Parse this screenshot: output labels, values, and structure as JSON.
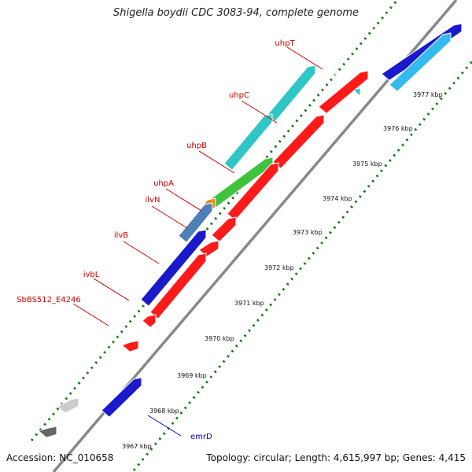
{
  "title": "Shigella boydii CDC 3083-94, complete genome",
  "footer": {
    "accession": "Accession: NC_010658",
    "topology": "Topology: circular; Length: 4,615,997 bp; Genes: 4,415"
  },
  "colors": {
    "backbone": "#888888",
    "forward_dots": "#1a7a1a",
    "reverse_dots": "#1a7a1a",
    "gene_label_red": "#cc0000",
    "gene_label_blue": "#0000cc"
  },
  "tick_labels": [
    {
      "kbp": 3967,
      "label": "3967 kbp"
    },
    {
      "kbp": 3968,
      "label": "3968 kbp"
    },
    {
      "kbp": 3969,
      "label": "3969 kbp"
    },
    {
      "kbp": 3970,
      "label": "3970 kbp"
    },
    {
      "kbp": 3971,
      "label": "3971 kbp"
    },
    {
      "kbp": 3972,
      "label": "3972 kbp"
    },
    {
      "kbp": 3973,
      "label": "3973 kbp"
    },
    {
      "kbp": 3974,
      "label": "3974 kbp"
    },
    {
      "kbp": 3975,
      "label": "3975 kbp"
    },
    {
      "kbp": 3976,
      "label": "3976 kbp"
    },
    {
      "kbp": 3977,
      "label": "3977 kbp"
    }
  ],
  "gene_labels": [
    {
      "name": "uhpT",
      "color": "#cc0000"
    },
    {
      "name": "uhpC",
      "color": "#cc0000"
    },
    {
      "name": "uhpB",
      "color": "#cc0000"
    },
    {
      "name": "uhpA",
      "color": "#cc0000"
    },
    {
      "name": "ilvN",
      "color": "#cc0000"
    },
    {
      "name": "ilvB",
      "color": "#cc0000"
    },
    {
      "name": "ivbL",
      "color": "#cc0000"
    },
    {
      "name": "SbBS512_E4246",
      "color": "#cc0000"
    },
    {
      "name": "emrD",
      "color": "#0000cc"
    }
  ],
  "features": [
    {
      "track": "outer",
      "strand": "forward",
      "color": "#2fc6c6",
      "name": "uhpT"
    },
    {
      "track": "outer",
      "strand": "forward",
      "color": "#2fc6c6",
      "name": "uhpC"
    },
    {
      "track": "outer",
      "strand": "forward",
      "color": "#2fc6c6",
      "name": "uhpB"
    },
    {
      "track": "outer",
      "strand": "forward",
      "color": "#3fc33f",
      "name": "uhpB"
    },
    {
      "track": "outer",
      "strand": "forward",
      "color": "#e8891a",
      "name": "uhpA"
    },
    {
      "track": "outer",
      "strand": "forward",
      "color": "#4d7fb8",
      "name": "ilvN"
    },
    {
      "track": "outer",
      "strand": "forward",
      "color": "#1a1acc",
      "name": "ilvB"
    },
    {
      "track": "outer",
      "strand": "forward",
      "color": "#cccccc",
      "name": "other"
    },
    {
      "track": "outer",
      "strand": "forward",
      "color": "#666666",
      "name": "other"
    },
    {
      "track": "inner",
      "strand": "forward",
      "color": "#ff1a1a",
      "name": "uhpT"
    },
    {
      "track": "inner",
      "strand": "forward",
      "color": "#ff1a1a",
      "name": "uhpC"
    },
    {
      "track": "inner",
      "strand": "forward",
      "color": "#ff1a1a",
      "name": "uhpB"
    },
    {
      "track": "inner",
      "strand": "forward",
      "color": "#ff1a1a",
      "name": "uhpA"
    },
    {
      "track": "inner",
      "strand": "forward",
      "color": "#ff1a1a",
      "name": "ilvN"
    },
    {
      "track": "inner",
      "strand": "forward",
      "color": "#ff1a1a",
      "name": "ilvB"
    },
    {
      "track": "inner",
      "strand": "forward",
      "color": "#ff1a1a",
      "name": "ivbL"
    },
    {
      "track": "inner",
      "strand": "forward",
      "color": "#ff1a1a",
      "name": "SbBS512_E4246"
    },
    {
      "track": "inner",
      "strand": "reverse",
      "color": "#1a1acc",
      "name": "emrD"
    },
    {
      "track": "inner",
      "strand": "forward",
      "color": "#1a1acc",
      "name": "other"
    },
    {
      "track": "inner",
      "strand": "forward",
      "color": "#33bbee",
      "name": "other"
    }
  ]
}
